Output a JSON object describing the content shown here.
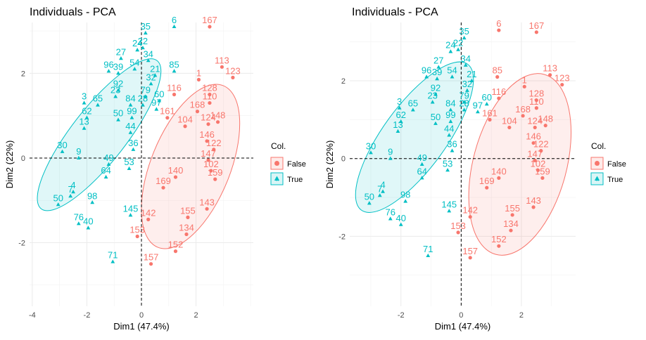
{
  "chart_data": [
    {
      "type": "scatter",
      "title": "Individuals - PCA",
      "xlabel": "Dim1 (47.4%)",
      "ylabel": "Dim2 (22%)",
      "xlim": [
        -4.1,
        4.1
      ],
      "ylim": [
        -3.5,
        3.2
      ],
      "xticks": [
        -4,
        -2,
        0,
        2
      ],
      "yticks": [
        -2,
        0,
        2
      ],
      "legend": {
        "title": "Col.",
        "position": "right",
        "entries": [
          "False",
          "True"
        ]
      },
      "colors": {
        "False": "#F8766D",
        "True": "#00BFC4"
      },
      "ellipses": [
        {
          "group": "True",
          "center": [
            -1.55,
            0.55
          ],
          "rx": 3.45,
          "ry": 1.0,
          "angle_deg": 52
        },
        {
          "group": "False",
          "center": [
            1.8,
            -0.2
          ],
          "rx": 3.2,
          "ry": 1.45,
          "angle_deg": 68
        }
      ],
      "series": [
        {
          "name": "True",
          "points": [
            {
              "id": "6",
              "x": 1.2,
              "y": 3.1
            },
            {
              "id": "35",
              "x": 0.15,
              "y": 2.95
            },
            {
              "id": "24",
              "x": -0.15,
              "y": 2.55
            },
            {
              "id": "22",
              "x": 0.05,
              "y": 2.6
            },
            {
              "id": "27",
              "x": -0.75,
              "y": 2.35
            },
            {
              "id": "34",
              "x": 0.25,
              "y": 2.3
            },
            {
              "id": "96",
              "x": -1.2,
              "y": 2.05
            },
            {
              "id": "39",
              "x": -0.85,
              "y": 2.0
            },
            {
              "id": "54",
              "x": -0.25,
              "y": 2.1
            },
            {
              "id": "21",
              "x": 0.5,
              "y": 1.95
            },
            {
              "id": "85",
              "x": 1.2,
              "y": 2.05
            },
            {
              "id": "32",
              "x": 0.35,
              "y": 1.75
            },
            {
              "id": "92",
              "x": -0.85,
              "y": 1.6
            },
            {
              "id": "23",
              "x": -0.95,
              "y": 1.45
            },
            {
              "id": "79",
              "x": 0.15,
              "y": 1.45
            },
            {
              "id": "60",
              "x": 0.65,
              "y": 1.35
            },
            {
              "id": "3",
              "x": -2.1,
              "y": 1.3
            },
            {
              "id": "65",
              "x": -1.6,
              "y": 1.25
            },
            {
              "id": "84",
              "x": -0.4,
              "y": 1.25
            },
            {
              "id": "28",
              "x": 0.05,
              "y": 1.25
            },
            {
              "id": "97",
              "x": 0.55,
              "y": 1.15
            },
            {
              "id": "62",
              "x": -2.0,
              "y": 0.95
            },
            {
              "id": "50",
              "x": -0.85,
              "y": 0.9
            },
            {
              "id": "99",
              "x": -0.35,
              "y": 0.95
            },
            {
              "id": "13",
              "x": -2.1,
              "y": 0.7
            },
            {
              "id": "44",
              "x": -0.4,
              "y": 0.6
            },
            {
              "id": "36",
              "x": -0.3,
              "y": 0.2
            },
            {
              "id": "30",
              "x": -2.9,
              "y": 0.15
            },
            {
              "id": "9",
              "x": -2.3,
              "y": 0.0
            },
            {
              "id": "49",
              "x": -1.2,
              "y": -0.15
            },
            {
              "id": "53",
              "x": -0.45,
              "y": -0.25
            },
            {
              "id": "64",
              "x": -1.3,
              "y": -0.45
            },
            {
              "id": "4",
              "x": -2.5,
              "y": -0.8
            },
            {
              "id": "7",
              "x": -2.6,
              "y": -0.9
            },
            {
              "id": "98",
              "x": -1.8,
              "y": -1.05
            },
            {
              "id": "50",
              "x": -3.05,
              "y": -1.1
            },
            {
              "id": "76",
              "x": -2.3,
              "y": -1.55
            },
            {
              "id": "40",
              "x": -1.95,
              "y": -1.65
            },
            {
              "id": "71",
              "x": -1.05,
              "y": -2.45
            },
            {
              "id": "145",
              "x": -0.4,
              "y": -1.35
            }
          ]
        },
        {
          "name": "False",
          "points": [
            {
              "id": "167",
              "x": 2.5,
              "y": 3.1
            },
            {
              "id": "113",
              "x": 2.95,
              "y": 2.15
            },
            {
              "id": "123",
              "x": 3.35,
              "y": 1.9
            },
            {
              "id": "1",
              "x": 2.1,
              "y": 1.85
            },
            {
              "id": "128",
              "x": 2.5,
              "y": 1.5
            },
            {
              "id": "116",
              "x": 1.2,
              "y": 1.5
            },
            {
              "id": "110",
              "x": 2.5,
              "y": 1.3
            },
            {
              "id": "168",
              "x": 2.05,
              "y": 1.1
            },
            {
              "id": "161",
              "x": 0.95,
              "y": 0.95
            },
            {
              "id": "148",
              "x": 2.8,
              "y": 0.85
            },
            {
              "id": "124",
              "x": 2.45,
              "y": 0.8
            },
            {
              "id": "104",
              "x": 1.6,
              "y": 0.75
            },
            {
              "id": "146",
              "x": 2.4,
              "y": 0.4
            },
            {
              "id": "122",
              "x": 2.65,
              "y": 0.2
            },
            {
              "id": "147",
              "x": 2.45,
              "y": -0.05
            },
            {
              "id": "102",
              "x": 2.55,
              "y": -0.3
            },
            {
              "id": "159",
              "x": 2.7,
              "y": -0.5
            },
            {
              "id": "169",
              "x": 0.8,
              "y": -0.7
            },
            {
              "id": "140",
              "x": 1.25,
              "y": -0.45
            },
            {
              "id": "143",
              "x": 2.4,
              "y": -1.2
            },
            {
              "id": "155",
              "x": 1.7,
              "y": -1.4
            },
            {
              "id": "142",
              "x": 0.25,
              "y": -1.45
            },
            {
              "id": "134",
              "x": 1.65,
              "y": -1.8
            },
            {
              "id": "153",
              "x": -0.15,
              "y": -1.85
            },
            {
              "id": "152",
              "x": 1.25,
              "y": -2.2
            },
            {
              "id": "157",
              "x": 0.35,
              "y": -2.5
            }
          ]
        }
      ]
    },
    {
      "type": "scatter",
      "title": "Individuals - PCA",
      "xlabel": "Dim1 (47.4%)",
      "ylabel": "Dim2 (22%)",
      "xlim": [
        -3.7,
        3.8
      ],
      "ylim": [
        -3.8,
        3.5
      ],
      "xticks": [
        -2,
        0,
        2
      ],
      "yticks": [
        -2,
        0,
        2
      ],
      "legend": {
        "title": "Col.",
        "position": "right",
        "entries": [
          "False",
          "True"
        ]
      },
      "colors": {
        "False": "#F8766D",
        "True": "#00BFC4"
      },
      "ellipses": [
        {
          "group": "True",
          "center": [
            -1.55,
            0.55
          ],
          "rx": 3.0,
          "ry": 1.05,
          "angle_deg": 54
        },
        {
          "group": "False",
          "center": [
            1.95,
            -0.15
          ],
          "rx": 3.1,
          "ry": 1.55,
          "angle_deg": 75
        }
      ],
      "series": [
        {
          "name": "True",
          "points": [
            {
              "id": "35",
              "x": 0.1,
              "y": 3.1
            },
            {
              "id": "24",
              "x": -0.35,
              "y": 2.75
            },
            {
              "id": "22",
              "x": -0.1,
              "y": 2.8
            },
            {
              "id": "27",
              "x": -0.75,
              "y": 2.35
            },
            {
              "id": "34",
              "x": 0.15,
              "y": 2.4
            },
            {
              "id": "96",
              "x": -1.15,
              "y": 2.1
            },
            {
              "id": "39",
              "x": -0.8,
              "y": 2.05
            },
            {
              "id": "54",
              "x": -0.3,
              "y": 2.1
            },
            {
              "id": "21",
              "x": 0.35,
              "y": 2.0
            },
            {
              "id": "32",
              "x": 0.2,
              "y": 1.75
            },
            {
              "id": "92",
              "x": -0.85,
              "y": 1.65
            },
            {
              "id": "23",
              "x": -0.95,
              "y": 1.45
            },
            {
              "id": "79",
              "x": 0.1,
              "y": 1.45
            },
            {
              "id": "60",
              "x": 0.85,
              "y": 1.4
            },
            {
              "id": "3",
              "x": -2.05,
              "y": 1.3
            },
            {
              "id": "65",
              "x": -1.6,
              "y": 1.25
            },
            {
              "id": "84",
              "x": -0.35,
              "y": 1.25
            },
            {
              "id": "28",
              "x": 0.1,
              "y": 1.25
            },
            {
              "id": "97",
              "x": 0.55,
              "y": 1.2
            },
            {
              "id": "62",
              "x": -2.0,
              "y": 0.95
            },
            {
              "id": "50",
              "x": -0.85,
              "y": 0.9
            },
            {
              "id": "99",
              "x": -0.35,
              "y": 0.95
            },
            {
              "id": "13",
              "x": -2.1,
              "y": 0.7
            },
            {
              "id": "44",
              "x": -0.4,
              "y": 0.6
            },
            {
              "id": "36",
              "x": -0.3,
              "y": 0.2
            },
            {
              "id": "30",
              "x": -3.0,
              "y": 0.15
            },
            {
              "id": "9",
              "x": -2.35,
              "y": 0.0
            },
            {
              "id": "49",
              "x": -1.3,
              "y": -0.15
            },
            {
              "id": "53",
              "x": -0.45,
              "y": -0.3
            },
            {
              "id": "64",
              "x": -1.3,
              "y": -0.5
            },
            {
              "id": "4",
              "x": -2.6,
              "y": -0.85
            },
            {
              "id": "7",
              "x": -2.7,
              "y": -0.95
            },
            {
              "id": "98",
              "x": -1.85,
              "y": -1.1
            },
            {
              "id": "50",
              "x": -3.05,
              "y": -1.15
            },
            {
              "id": "76",
              "x": -2.35,
              "y": -1.55
            },
            {
              "id": "40",
              "x": -2.0,
              "y": -1.7
            },
            {
              "id": "145",
              "x": -0.4,
              "y": -1.35
            },
            {
              "id": "71",
              "x": -1.1,
              "y": -2.5
            }
          ]
        },
        {
          "name": "False",
          "points": [
            {
              "id": "6",
              "x": 1.25,
              "y": 3.3
            },
            {
              "id": "167",
              "x": 2.5,
              "y": 3.25
            },
            {
              "id": "113",
              "x": 2.95,
              "y": 2.15
            },
            {
              "id": "123",
              "x": 3.35,
              "y": 1.9
            },
            {
              "id": "85",
              "x": 1.2,
              "y": 2.1
            },
            {
              "id": "1",
              "x": 2.1,
              "y": 1.85
            },
            {
              "id": "128",
              "x": 2.5,
              "y": 1.5
            },
            {
              "id": "116",
              "x": 1.25,
              "y": 1.55
            },
            {
              "id": "110",
              "x": 2.5,
              "y": 1.3
            },
            {
              "id": "168",
              "x": 2.05,
              "y": 1.1
            },
            {
              "id": "161",
              "x": 0.95,
              "y": 1.0
            },
            {
              "id": "148",
              "x": 2.8,
              "y": 0.85
            },
            {
              "id": "124",
              "x": 2.45,
              "y": 0.8
            },
            {
              "id": "104",
              "x": 1.6,
              "y": 0.8
            },
            {
              "id": "146",
              "x": 2.4,
              "y": 0.4
            },
            {
              "id": "122",
              "x": 2.65,
              "y": 0.2
            },
            {
              "id": "147",
              "x": 2.45,
              "y": -0.05
            },
            {
              "id": "102",
              "x": 2.55,
              "y": -0.3
            },
            {
              "id": "159",
              "x": 2.7,
              "y": -0.5
            },
            {
              "id": "169",
              "x": 0.85,
              "y": -0.75
            },
            {
              "id": "140",
              "x": 1.25,
              "y": -0.5
            },
            {
              "id": "143",
              "x": 2.4,
              "y": -1.25
            },
            {
              "id": "155",
              "x": 1.7,
              "y": -1.45
            },
            {
              "id": "142",
              "x": 0.3,
              "y": -1.5
            },
            {
              "id": "134",
              "x": 1.65,
              "y": -1.85
            },
            {
              "id": "153",
              "x": -0.1,
              "y": -1.9
            },
            {
              "id": "152",
              "x": 1.25,
              "y": -2.25
            },
            {
              "id": "157",
              "x": 0.3,
              "y": -2.55
            }
          ]
        }
      ]
    }
  ]
}
